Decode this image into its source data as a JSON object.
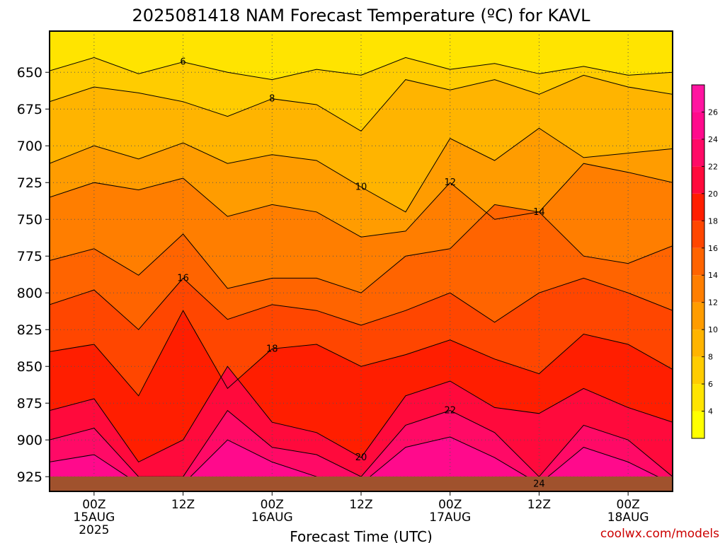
{
  "chart_data": {
    "type": "heatmap",
    "title": "2025081418 NAM Forecast Temperature (ºC) for KAVL",
    "xlabel": "Forecast Time (UTC)",
    "credit": "coolwx.com/models",
    "y_ticks": [
      "650",
      "675",
      "700",
      "725",
      "750",
      "775",
      "800",
      "825",
      "850",
      "875",
      "900",
      "925"
    ],
    "y_tick_values": [
      650,
      675,
      700,
      725,
      750,
      775,
      800,
      825,
      850,
      875,
      900,
      925
    ],
    "ylim": [
      622,
      935
    ],
    "x_ticks": [
      {
        "label": "00Z",
        "sub": "15AUG",
        "sub2": "2025",
        "hour": 6
      },
      {
        "label": "12Z",
        "sub": "",
        "sub2": "",
        "hour": 18
      },
      {
        "label": "00Z",
        "sub": "16AUG",
        "sub2": "",
        "hour": 30
      },
      {
        "label": "12Z",
        "sub": "",
        "sub2": "",
        "hour": 42
      },
      {
        "label": "00Z",
        "sub": "17AUG",
        "sub2": "",
        "hour": 54
      },
      {
        "label": "12Z",
        "sub": "",
        "sub2": "",
        "hour": 66
      },
      {
        "label": "00Z",
        "sub": "18AUG",
        "sub2": "",
        "hour": 78
      }
    ],
    "xlim": [
      0,
      84
    ],
    "colorbar": {
      "labels": [
        "4",
        "6",
        "8",
        "10",
        "12",
        "14",
        "16",
        "18",
        "20",
        "22",
        "24",
        "26"
      ],
      "values": [
        4,
        6,
        8,
        10,
        12,
        14,
        16,
        18,
        20,
        22,
        24,
        26
      ],
      "colors": [
        "#ffff00",
        "#ffe400",
        "#ffcc00",
        "#ffb400",
        "#ff9c00",
        "#ff7e00",
        "#ff6400",
        "#ff4600",
        "#ff1e00",
        "#ff0a3c",
        "#ff0a66",
        "#ff0a8c",
        "#ff14a0"
      ]
    },
    "temperature_profile_hint": {
      "pressure_levels": [
        640,
        650,
        675,
        700,
        725,
        750,
        775,
        800,
        825,
        850,
        875,
        900,
        925
      ],
      "contours": [
        {
          "value": 6,
          "label": "6",
          "pressures": [
            649,
            640,
            651,
            643,
            650,
            655,
            648,
            652,
            640,
            648,
            644,
            651,
            646,
            652,
            650
          ]
        },
        {
          "value": 8,
          "label": "8",
          "pressures": [
            670,
            660,
            664,
            670,
            680,
            668,
            672,
            690,
            655,
            662,
            655,
            665,
            652,
            660,
            665
          ]
        },
        {
          "value": 10,
          "label": "10",
          "pressures": [
            712,
            700,
            709,
            698,
            712,
            706,
            710,
            728,
            745,
            695,
            710,
            688,
            708,
            705,
            702
          ]
        },
        {
          "value": 12,
          "label": "12",
          "pressures": [
            735,
            725,
            730,
            722,
            748,
            740,
            745,
            762,
            758,
            725,
            750,
            745,
            712,
            718,
            725
          ]
        },
        {
          "value": 14,
          "label": "14",
          "pressures": [
            778,
            770,
            788,
            760,
            797,
            790,
            790,
            800,
            775,
            770,
            740,
            745,
            775,
            780,
            768
          ]
        },
        {
          "value": 16,
          "label": "16",
          "pressures": [
            808,
            798,
            825,
            790,
            818,
            808,
            812,
            822,
            812,
            800,
            820,
            800,
            790,
            800,
            812
          ]
        },
        {
          "value": 18,
          "label": "18",
          "pressures": [
            840,
            835,
            870,
            812,
            865,
            838,
            835,
            850,
            842,
            832,
            845,
            855,
            828,
            835,
            852
          ]
        },
        {
          "value": 20,
          "label": "20",
          "pressures": [
            880,
            872,
            915,
            900,
            850,
            888,
            895,
            912,
            870,
            860,
            878,
            882,
            865,
            878,
            888
          ]
        },
        {
          "value": 22,
          "label": "22",
          "pressures": [
            900,
            892,
            925,
            925,
            880,
            905,
            910,
            925,
            890,
            880,
            895,
            925,
            890,
            900,
            925
          ]
        },
        {
          "value": 24,
          "label": "24",
          "pressures": [
            915,
            910,
            930,
            930,
            900,
            915,
            925,
            930,
            905,
            898,
            912,
            930,
            905,
            915,
            930
          ]
        }
      ]
    }
  }
}
